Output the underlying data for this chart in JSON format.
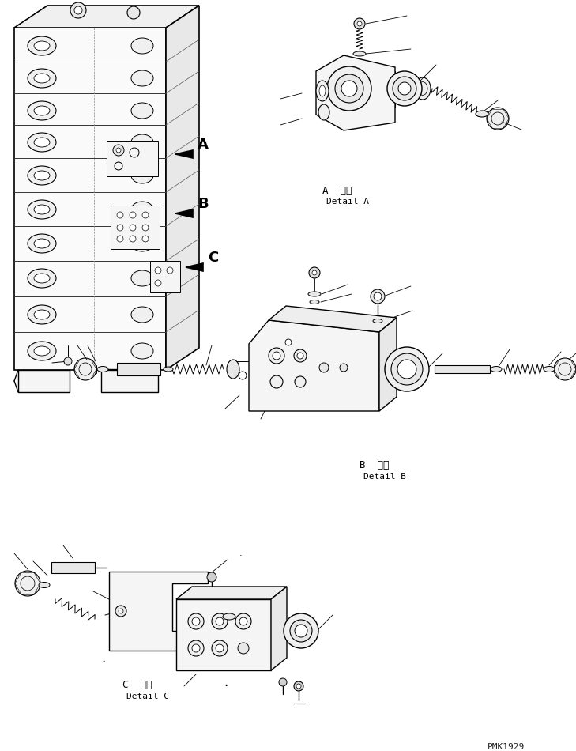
{
  "bg_color": "#ffffff",
  "line_color": "#000000",
  "text_color": "#000000",
  "fig_width": 7.29,
  "fig_height": 9.5,
  "dpi": 100,
  "watermark": "PMK1929",
  "label_A_jp": "A  詳細",
  "label_A_en": "Detail A",
  "label_B_jp": "B  詳細",
  "label_B_en": "Detail B",
  "label_C_jp": "C  詳細",
  "label_C_en": "Detail C"
}
